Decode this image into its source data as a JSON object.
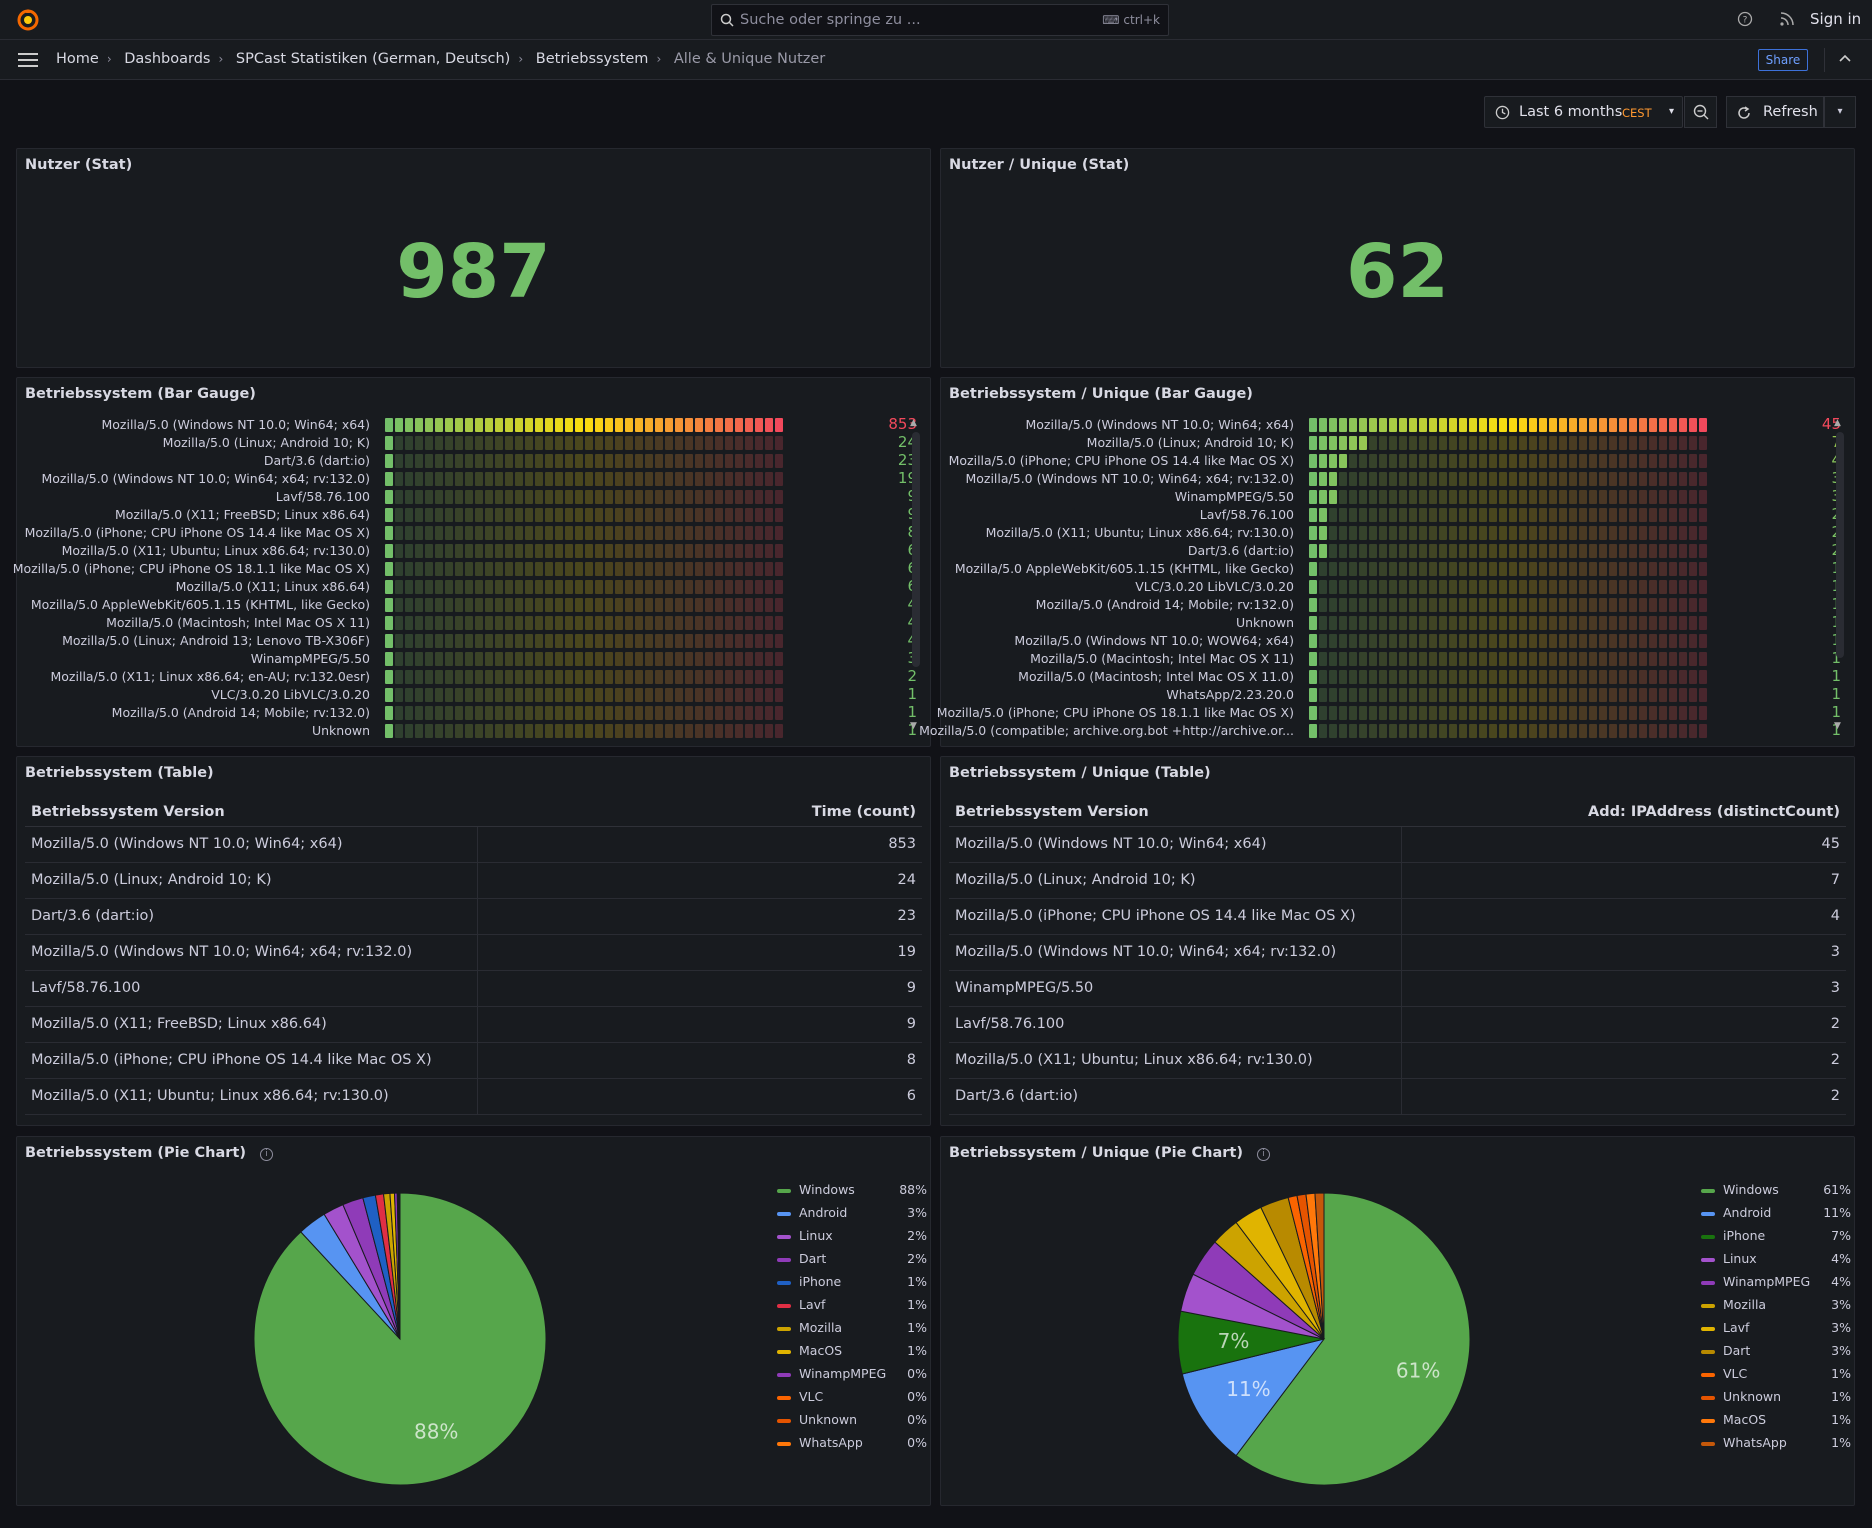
{
  "search": {
    "placeholder": "Suche oder springe zu ...",
    "shortcut": "ctrl+k"
  },
  "header": {
    "signin": "Sign in",
    "share": "Share"
  },
  "breadcrumbs": [
    "Home",
    "Dashboards",
    "SPCast Statistiken (German, Deutsch)",
    "Betriebssystem",
    "Alle & Unique Nutzer"
  ],
  "timepicker": {
    "range": "Last 6 months",
    "tz": "CEST",
    "refresh": "Refresh"
  },
  "stat_left": {
    "title": "Nutzer (Stat)",
    "value": "987"
  },
  "stat_right": {
    "title": "Nutzer / Unique (Stat)",
    "value": "62"
  },
  "bar_left": {
    "title": "Betriebssystem (Bar Gauge)",
    "max": 853,
    "items": [
      {
        "label": "Mozilla/5.0 (Windows NT 10.0; Win64; x64)",
        "value": 853
      },
      {
        "label": "Mozilla/5.0 (Linux; Android 10; K)",
        "value": 24
      },
      {
        "label": "Dart/3.6 (dart:io)",
        "value": 23
      },
      {
        "label": "Mozilla/5.0 (Windows NT 10.0; Win64; x64; rv:132.0)",
        "value": 19
      },
      {
        "label": "Lavf/58.76.100",
        "value": 9
      },
      {
        "label": "Mozilla/5.0 (X11; FreeBSD; Linux x86.64)",
        "value": 9
      },
      {
        "label": "Mozilla/5.0 (iPhone; CPU iPhone OS 14.4 like Mac OS X)",
        "value": 8
      },
      {
        "label": "Mozilla/5.0 (X11; Ubuntu; Linux x86.64; rv:130.0)",
        "value": 6
      },
      {
        "label": "Mozilla/5.0 (iPhone; CPU iPhone OS 18.1.1 like Mac OS X)",
        "value": 6
      },
      {
        "label": "Mozilla/5.0 (X11; Linux x86.64)",
        "value": 6
      },
      {
        "label": "Mozilla/5.0 AppleWebKit/605.1.15 (KHTML, like Gecko)",
        "value": 4
      },
      {
        "label": "Mozilla/5.0 (Macintosh; Intel Mac OS X 11)",
        "value": 4
      },
      {
        "label": "Mozilla/5.0 (Linux; Android 13; Lenovo TB-X306F)",
        "value": 4
      },
      {
        "label": "WinampMPEG/5.50",
        "value": 3
      },
      {
        "label": "Mozilla/5.0 (X11; Linux x86.64; en-AU; rv:132.0esr)",
        "value": 2
      },
      {
        "label": "VLC/3.0.20 LibVLC/3.0.20",
        "value": 1
      },
      {
        "label": "Mozilla/5.0 (Android 14; Mobile; rv:132.0)",
        "value": 1
      },
      {
        "label": "Unknown",
        "value": 1
      }
    ]
  },
  "bar_right": {
    "title": "Betriebssystem / Unique (Bar Gauge)",
    "max": 45,
    "items": [
      {
        "label": "Mozilla/5.0 (Windows NT 10.0; Win64; x64)",
        "value": 45
      },
      {
        "label": "Mozilla/5.0 (Linux; Android 10; K)",
        "value": 7
      },
      {
        "label": "Mozilla/5.0 (iPhone; CPU iPhone OS 14.4 like Mac OS X)",
        "value": 4
      },
      {
        "label": "Mozilla/5.0 (Windows NT 10.0; Win64; x64; rv:132.0)",
        "value": 3
      },
      {
        "label": "WinampMPEG/5.50",
        "value": 3
      },
      {
        "label": "Lavf/58.76.100",
        "value": 2
      },
      {
        "label": "Mozilla/5.0 (X11; Ubuntu; Linux x86.64; rv:130.0)",
        "value": 2
      },
      {
        "label": "Dart/3.6 (dart:io)",
        "value": 2
      },
      {
        "label": "Mozilla/5.0 AppleWebKit/605.1.15 (KHTML, like Gecko)",
        "value": 1
      },
      {
        "label": "VLC/3.0.20 LibVLC/3.0.20",
        "value": 1
      },
      {
        "label": "Mozilla/5.0 (Android 14; Mobile; rv:132.0)",
        "value": 1
      },
      {
        "label": "Unknown",
        "value": 1
      },
      {
        "label": "Mozilla/5.0 (Windows NT 10.0; WOW64; x64)",
        "value": 1
      },
      {
        "label": "Mozilla/5.0 (Macintosh; Intel Mac OS X 11)",
        "value": 1
      },
      {
        "label": "Mozilla/5.0 (Macintosh; Intel Mac OS X 11.0)",
        "value": 1
      },
      {
        "label": "WhatsApp/2.23.20.0",
        "value": 1
      },
      {
        "label": "Mozilla/5.0 (iPhone; CPU iPhone OS 18.1.1 like Mac OS X)",
        "value": 1
      },
      {
        "label": "Mozilla/5.0 (compatible; archive.org.bot +http://archive.or...",
        "value": 1
      }
    ]
  },
  "table_left": {
    "title": "Betriebssystem (Table)",
    "col1": "Betriebssystem Version",
    "col2": "Time (count)",
    "rows": [
      [
        "Mozilla/5.0 (Windows NT 10.0; Win64; x64)",
        "853"
      ],
      [
        "Mozilla/5.0 (Linux; Android 10; K)",
        "24"
      ],
      [
        "Dart/3.6 (dart:io)",
        "23"
      ],
      [
        "Mozilla/5.0 (Windows NT 10.0; Win64; x64; rv:132.0)",
        "19"
      ],
      [
        "Lavf/58.76.100",
        "9"
      ],
      [
        "Mozilla/5.0 (X11; FreeBSD; Linux x86.64)",
        "9"
      ],
      [
        "Mozilla/5.0 (iPhone; CPU iPhone OS 14.4 like Mac OS X)",
        "8"
      ],
      [
        "Mozilla/5.0 (X11; Ubuntu; Linux x86.64; rv:130.0)",
        "6"
      ]
    ]
  },
  "table_right": {
    "title": "Betriebssystem / Unique (Table)",
    "col1": "Betriebssystem Version",
    "col2": "Add: IPAddress (distinctCount)",
    "rows": [
      [
        "Mozilla/5.0 (Windows NT 10.0; Win64; x64)",
        "45"
      ],
      [
        "Mozilla/5.0 (Linux; Android 10; K)",
        "7"
      ],
      [
        "Mozilla/5.0 (iPhone; CPU iPhone OS 14.4 like Mac OS X)",
        "4"
      ],
      [
        "Mozilla/5.0 (Windows NT 10.0; Win64; x64; rv:132.0)",
        "3"
      ],
      [
        "WinampMPEG/5.50",
        "3"
      ],
      [
        "Lavf/58.76.100",
        "2"
      ],
      [
        "Mozilla/5.0 (X11; Ubuntu; Linux x86.64; rv:130.0)",
        "2"
      ],
      [
        "Dart/3.6 (dart:io)",
        "2"
      ]
    ]
  },
  "pie_left": {
    "title": "Betriebssystem (Pie Chart)",
    "slices": [
      {
        "name": "Windows",
        "pct": "88%",
        "value": 88.2,
        "color": "#56a64b"
      },
      {
        "name": "Android",
        "pct": "3%",
        "value": 3.2,
        "color": "#5794f2"
      },
      {
        "name": "Linux",
        "pct": "2%",
        "value": 2.3,
        "color": "#a352cc"
      },
      {
        "name": "Dart",
        "pct": "2%",
        "value": 2.3,
        "color": "#8f3bb8"
      },
      {
        "name": "iPhone",
        "pct": "1%",
        "value": 1.4,
        "color": "#1f60c4"
      },
      {
        "name": "Lavf",
        "pct": "1%",
        "value": 0.9,
        "color": "#e02f44"
      },
      {
        "name": "Mozilla",
        "pct": "1%",
        "value": 0.7,
        "color": "#cca300"
      },
      {
        "name": "MacOS",
        "pct": "1%",
        "value": 0.5,
        "color": "#e0b400"
      },
      {
        "name": "WinampMPEG",
        "pct": "0%",
        "value": 0.3,
        "color": "#8f3bb8"
      },
      {
        "name": "VLC",
        "pct": "0%",
        "value": 0.1,
        "color": "#fa6400"
      },
      {
        "name": "Unknown",
        "pct": "0%",
        "value": 0.1,
        "color": "#e55400"
      },
      {
        "name": "WhatsApp",
        "pct": "0%",
        "value": 0.1,
        "color": "#ff780a"
      }
    ],
    "labels": [
      {
        "text": "88%",
        "slice": 0
      }
    ]
  },
  "pie_right": {
    "title": "Betriebssystem / Unique (Pie Chart)",
    "slices": [
      {
        "name": "Windows",
        "pct": "61%",
        "value": 61,
        "color": "#56a64b"
      },
      {
        "name": "Android",
        "pct": "11%",
        "value": 11,
        "color": "#5794f2"
      },
      {
        "name": "iPhone",
        "pct": "7%",
        "value": 7,
        "color": "#19730e"
      },
      {
        "name": "Linux",
        "pct": "4%",
        "value": 4.3,
        "color": "#a352cc"
      },
      {
        "name": "WinampMPEG",
        "pct": "4%",
        "value": 4.3,
        "color": "#8f3bb8"
      },
      {
        "name": "Mozilla",
        "pct": "3%",
        "value": 3.2,
        "color": "#cca300"
      },
      {
        "name": "Lavf",
        "pct": "3%",
        "value": 3.2,
        "color": "#e0b400"
      },
      {
        "name": "Dart",
        "pct": "3%",
        "value": 3.2,
        "color": "#b88a00"
      },
      {
        "name": "VLC",
        "pct": "1%",
        "value": 1.0,
        "color": "#fa6400"
      },
      {
        "name": "Unknown",
        "pct": "1%",
        "value": 1.0,
        "color": "#e55400"
      },
      {
        "name": "MacOS",
        "pct": "1%",
        "value": 1.0,
        "color": "#ff780a"
      },
      {
        "name": "WhatsApp",
        "pct": "1%",
        "value": 1.0,
        "color": "#c4580a"
      }
    ],
    "labels": [
      {
        "text": "61%",
        "slice": 0
      },
      {
        "text": "11%",
        "slice": 1
      },
      {
        "text": "7%",
        "slice": 2
      }
    ]
  }
}
